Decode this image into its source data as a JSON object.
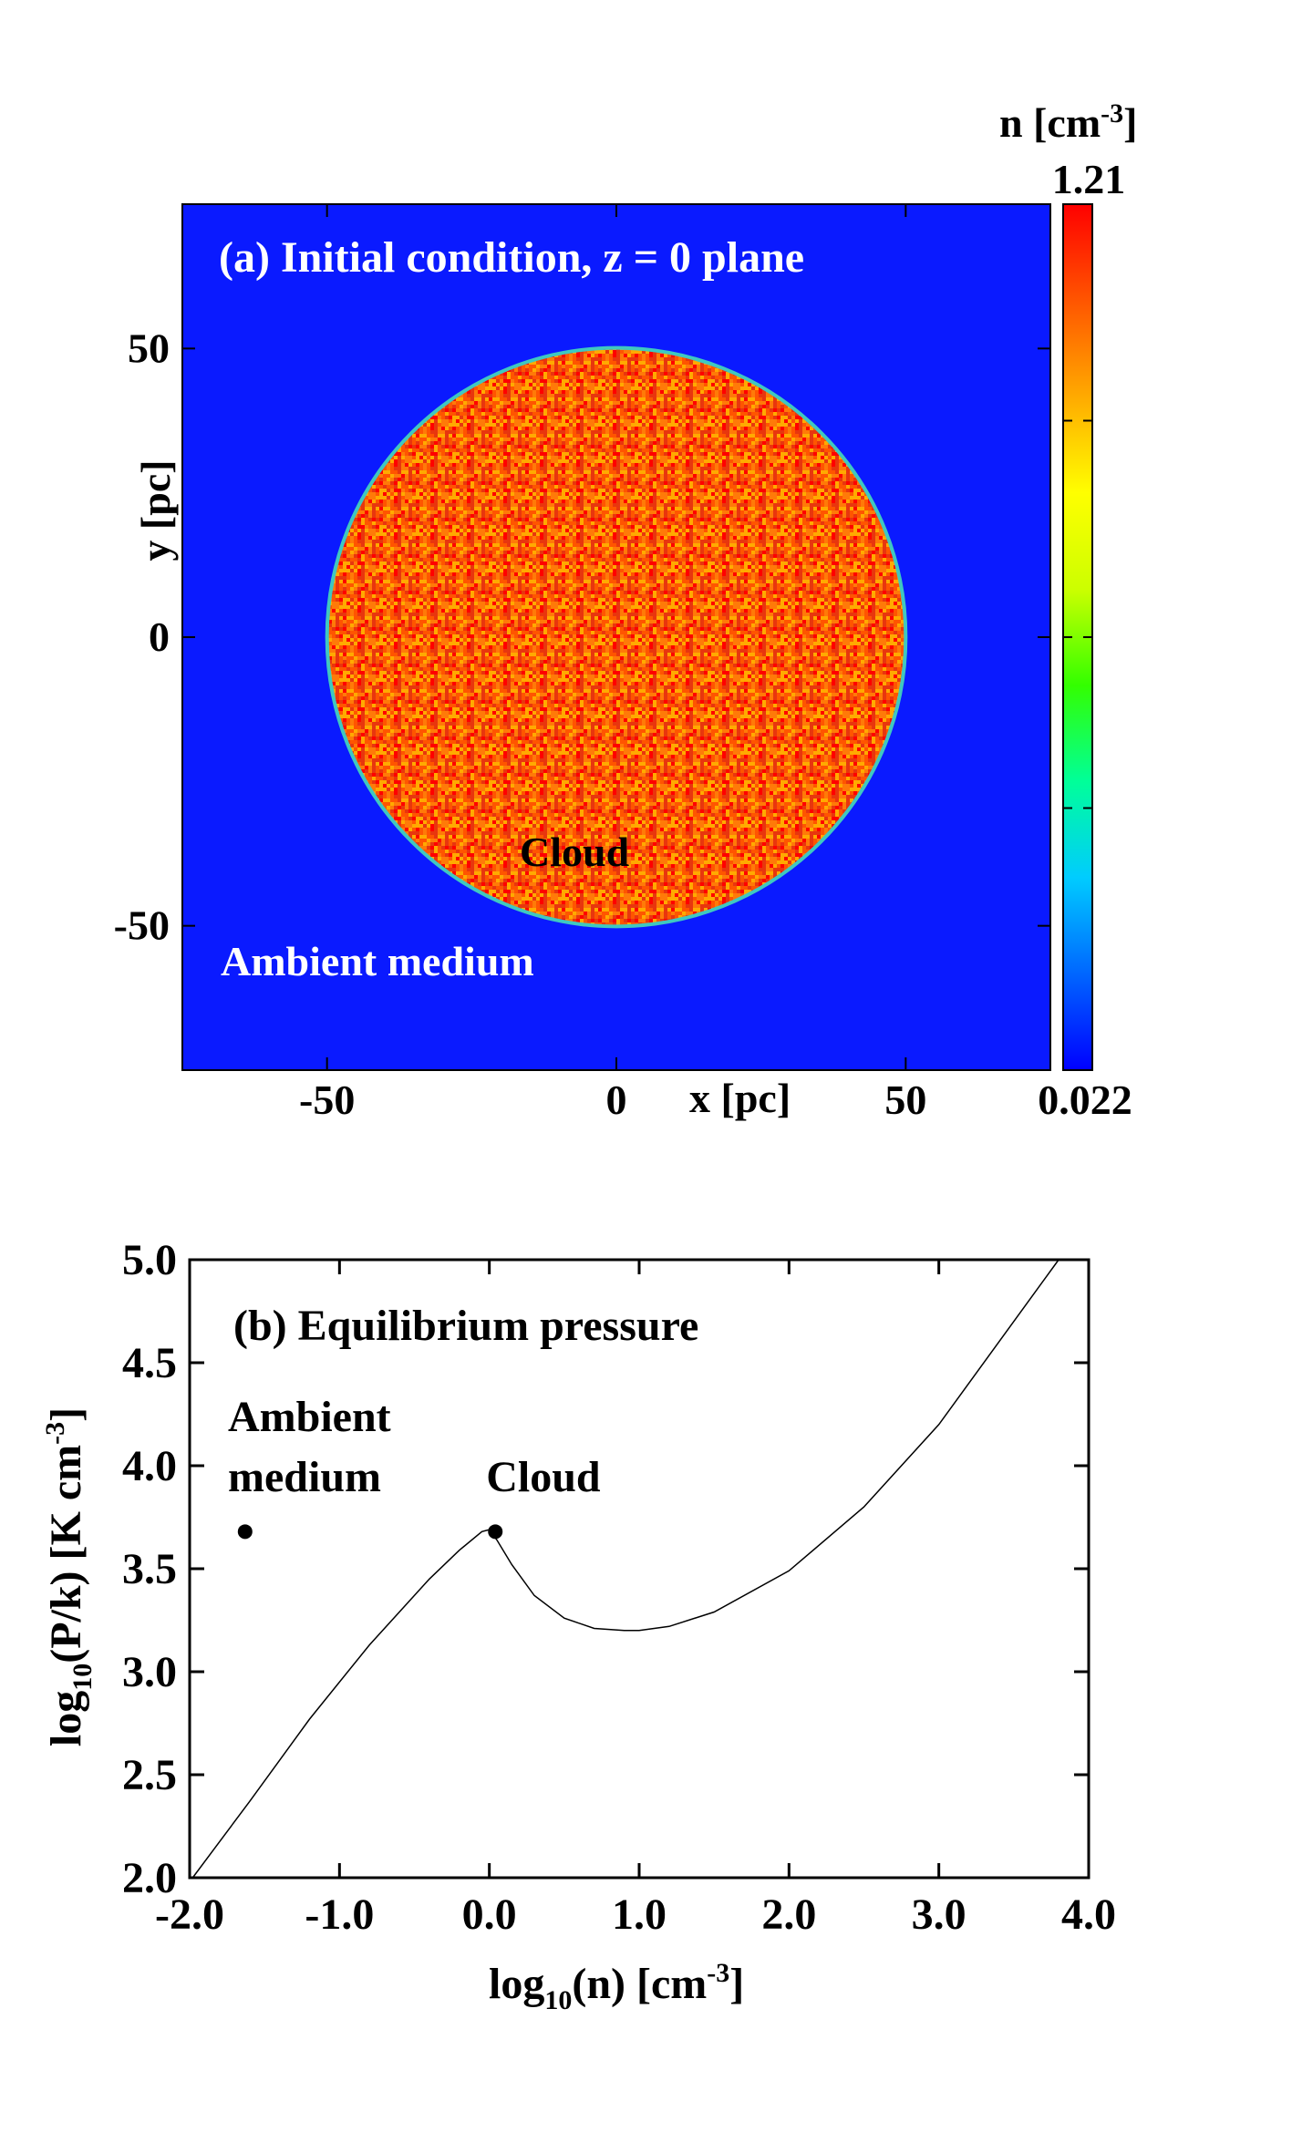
{
  "chart_data": [
    {
      "type": "heatmap",
      "panel": "(a)",
      "title": "(a) Initial condition, z = 0 plane",
      "xlabel": "x [pc]",
      "ylabel": "y [pc]",
      "xlim": [
        -75,
        75
      ],
      "ylim": [
        -75,
        75
      ],
      "xticks": [
        -50,
        0,
        50
      ],
      "yticks": [
        -50,
        0,
        50
      ],
      "xtick_labels": [
        "-50",
        "0",
        "50"
      ],
      "ytick_labels": [
        "-50",
        "0",
        "50"
      ],
      "cloud": {
        "center": [
          0,
          0
        ],
        "radius": 50,
        "label": "Cloud"
      },
      "ambient_label": "Ambient medium",
      "colorbar": {
        "label": "n [cm",
        "label_sup": "-3",
        "label_close": "]",
        "max_label": "1.21",
        "min_label": "0.022",
        "max": 1.21,
        "min": 0.022
      },
      "colors": {
        "ambient": "#0a1aff",
        "cloud": "#f25010",
        "colormap": [
          "#0000ff",
          "#0066ff",
          "#00ccff",
          "#00ff99",
          "#33ff00",
          "#ccff00",
          "#ffff00",
          "#ffaa00",
          "#ff5500",
          "#ff0000"
        ]
      }
    },
    {
      "type": "line",
      "panel": "(b)",
      "title": "(b) Equilibrium pressure",
      "xlabel_parts": [
        "log",
        "10",
        "(n) [cm",
        "-3",
        "]"
      ],
      "ylabel_parts": [
        "log",
        "10",
        "(P/k) [K cm",
        "-3",
        "]"
      ],
      "xlim": [
        -2.0,
        4.0
      ],
      "ylim": [
        2.0,
        5.0
      ],
      "xticks": [
        -2.0,
        -1.0,
        0.0,
        1.0,
        2.0,
        3.0,
        4.0
      ],
      "xtick_labels": [
        "-2.0",
        "-1.0",
        "0.0",
        "1.0",
        "2.0",
        "3.0",
        "4.0"
      ],
      "yticks": [
        2.0,
        2.5,
        3.0,
        3.5,
        4.0,
        4.5,
        5.0
      ],
      "ytick_labels": [
        "2.0",
        "2.5",
        "3.0",
        "3.5",
        "4.0",
        "4.5",
        "5.0"
      ],
      "series": [
        {
          "x": [
            -1.98,
            -1.6,
            -1.2,
            -0.8,
            -0.4,
            -0.2,
            -0.05,
            0.0,
            0.05,
            0.15,
            0.3,
            0.5,
            0.7,
            0.9,
            1.0,
            1.2,
            1.5,
            2.0,
            2.5,
            3.0,
            3.5,
            3.8
          ],
          "y": [
            2.0,
            2.37,
            2.77,
            3.13,
            3.45,
            3.59,
            3.68,
            3.69,
            3.64,
            3.52,
            3.37,
            3.26,
            3.21,
            3.2,
            3.2,
            3.22,
            3.29,
            3.49,
            3.8,
            4.2,
            4.7,
            5.0
          ]
        }
      ],
      "points": [
        {
          "x": -1.63,
          "y": 3.68,
          "label_lines": [
            "Ambient",
            "medium"
          ]
        },
        {
          "x": 0.04,
          "y": 3.68,
          "label_lines": [
            "Cloud"
          ]
        }
      ]
    }
  ]
}
